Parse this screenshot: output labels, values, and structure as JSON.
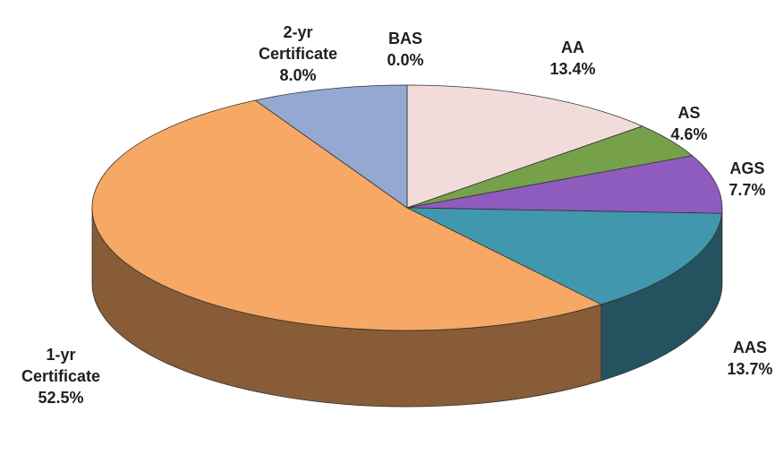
{
  "chart_data": {
    "type": "pie3d",
    "categories": [
      "BAS",
      "AA",
      "AS",
      "AGS",
      "AAS",
      "1-yr Certificate",
      "2-yr Certificate"
    ],
    "values": [
      0.0,
      13.4,
      4.6,
      7.7,
      13.7,
      52.5,
      8.0
    ],
    "value_labels": [
      "0.0%",
      "13.4%",
      "4.6%",
      "7.7%",
      "13.7%",
      "52.5%",
      "8.0%"
    ],
    "colors": [
      "#c0504d",
      "#f2dcdb",
      "#77a04a",
      "#8e5bbf",
      "#4197ad",
      "#f6a864",
      "#93a9d1"
    ]
  }
}
